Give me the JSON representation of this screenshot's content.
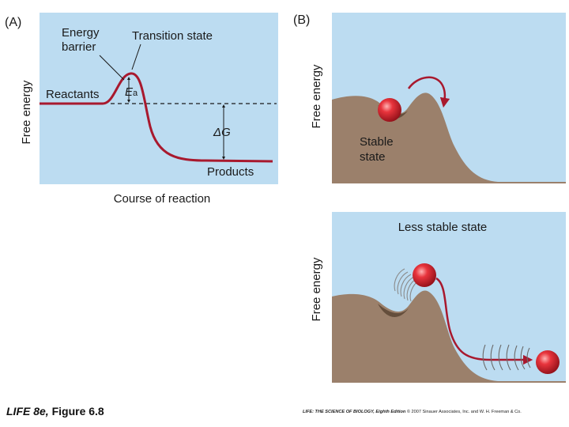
{
  "colors": {
    "panel_bg": "#bcdcf1",
    "curve": "#a8192e",
    "arrow": "#a8192e",
    "terrain": "#9b806b",
    "terrain_dark": "#5a4534",
    "ball": "#d9252e"
  },
  "panel_a": {
    "label": "(A)",
    "y_axis_label": "Free energy",
    "x_axis_label": "Course of reaction",
    "reactants": "Reactants",
    "energy_barrier_line1": "Energy",
    "energy_barrier_line2": "barrier",
    "transition_state": "Transition state",
    "ea_symbol": "E",
    "ea_subscript": "a",
    "delta_g": "ΔG",
    "products": "Products"
  },
  "panel_b": {
    "label": "(B)",
    "top": {
      "y_axis_label": "Free energy",
      "stable_line1": "Stable",
      "stable_line2": "state"
    },
    "bottom": {
      "y_axis_label": "Free energy",
      "title": "Less stable state"
    }
  },
  "footer": {
    "figure_title": "LIFE 8e,",
    "figure_number": " Figure 6.8",
    "credit_title": "LIFE: THE SCIENCE OF BIOLOGY, Eighth Edition",
    "credit_rest": "  © 2007 Sinauer Associates, Inc. and W. H. Freeman & Co."
  }
}
